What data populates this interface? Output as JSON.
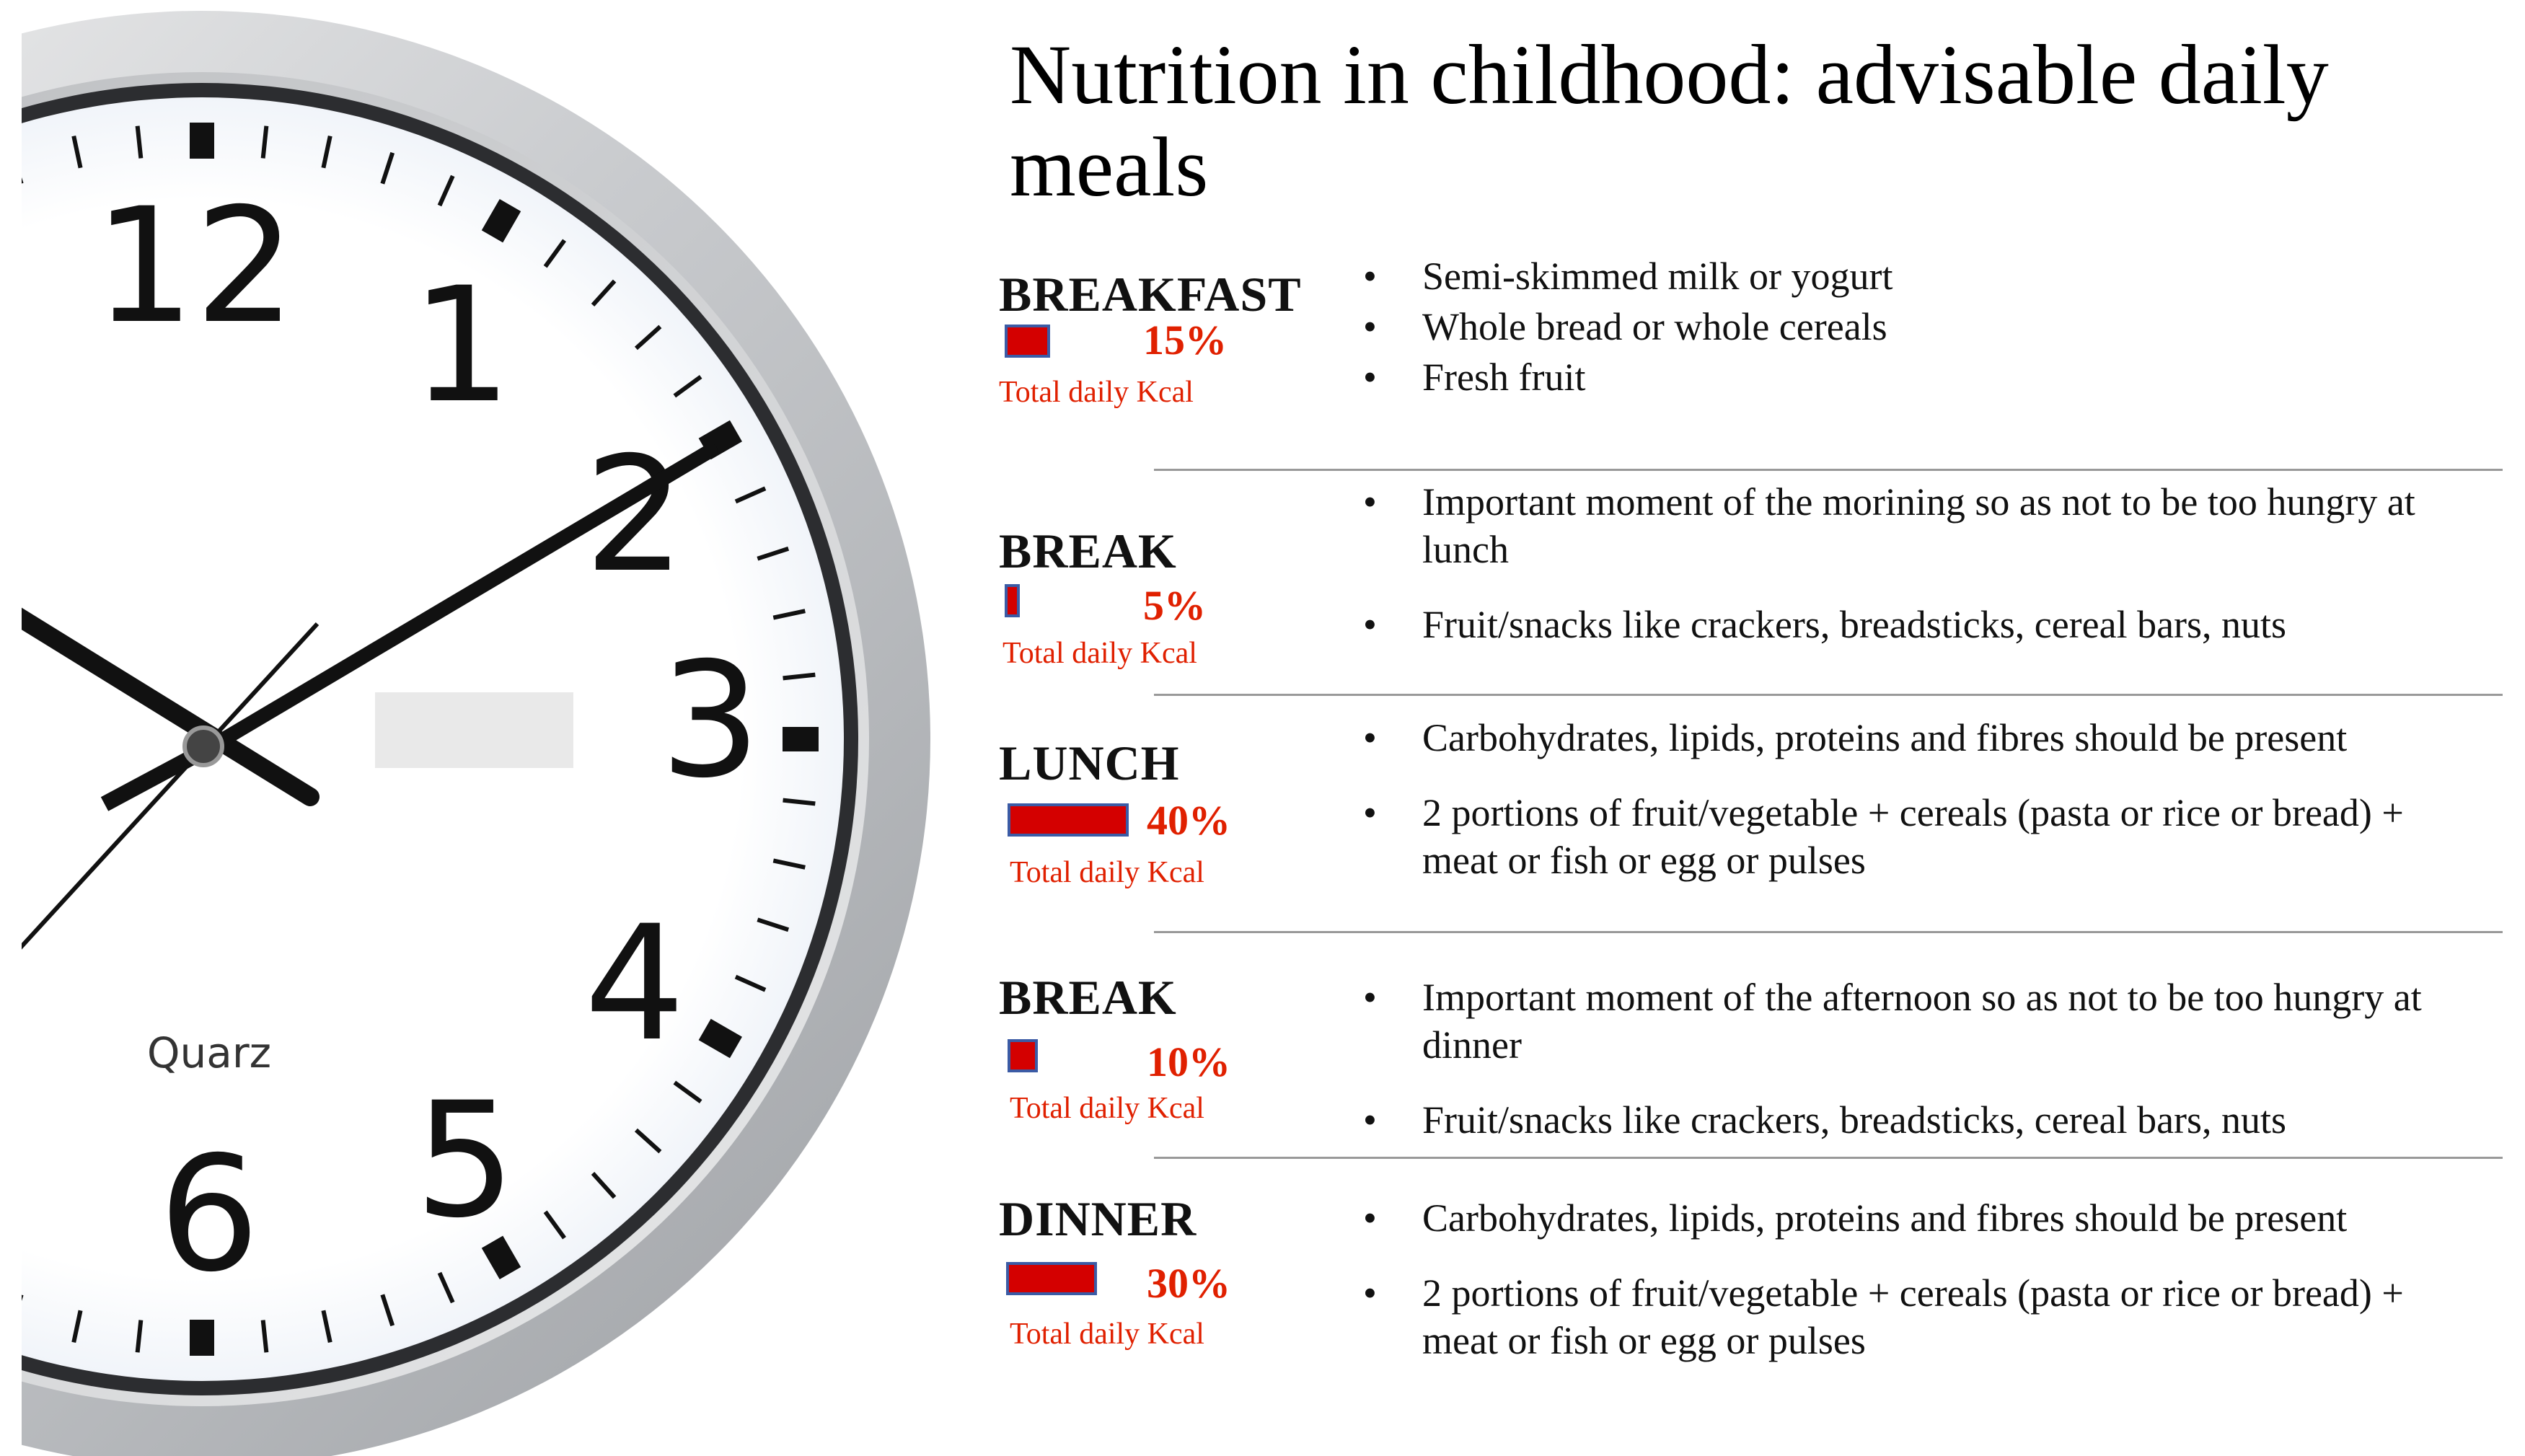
{
  "title": "Nutrition in childhood: advisable daily meals",
  "clock": {
    "brand": "Quarz",
    "numerals": [
      "12",
      "1",
      "2",
      "3",
      "4",
      "5",
      "6"
    ]
  },
  "colors": {
    "bar_fill": "#d40000",
    "bar_border": "#3b5ba5",
    "accent": "#e02000"
  },
  "meals": [
    {
      "name": "BREAKFAST",
      "percent": "15%",
      "kcal_share": 15,
      "kcal_label": "Total daily Kcal",
      "items": [
        "Semi-skimmed milk or yogurt",
        "Whole bread or whole cereals",
        "Fresh fruit"
      ]
    },
    {
      "name": "BREAK",
      "percent": "5%",
      "kcal_share": 5,
      "kcal_label": "Total daily Kcal",
      "items": [
        "Important moment of the morining so as not to be too hungry at lunch",
        "Fruit/snacks like crackers, breadsticks, cereal bars, nuts"
      ]
    },
    {
      "name": "LUNCH",
      "percent": "40%",
      "kcal_share": 40,
      "kcal_label": "Total daily Kcal",
      "items": [
        "Carbohydrates, lipids, proteins and fibres should be present",
        "2 portions of fruit/vegetable + cereals (pasta or rice or bread) + meat or fish or egg or pulses"
      ]
    },
    {
      "name": "BREAK",
      "percent": "10%",
      "kcal_share": 10,
      "kcal_label": "Total daily Kcal",
      "items": [
        "Important moment of the afternoon so as not to be too hungry at dinner",
        "Fruit/snacks like crackers, breadsticks, cereal bars, nuts"
      ]
    },
    {
      "name": "DINNER",
      "percent": "30%",
      "kcal_share": 30,
      "kcal_label": "Total daily Kcal",
      "items": [
        "Carbohydrates, lipids, proteins and fibres should be present",
        "2 portions of fruit/vegetable + cereals (pasta or rice or bread) + meat or fish or egg or pulses"
      ]
    }
  ]
}
